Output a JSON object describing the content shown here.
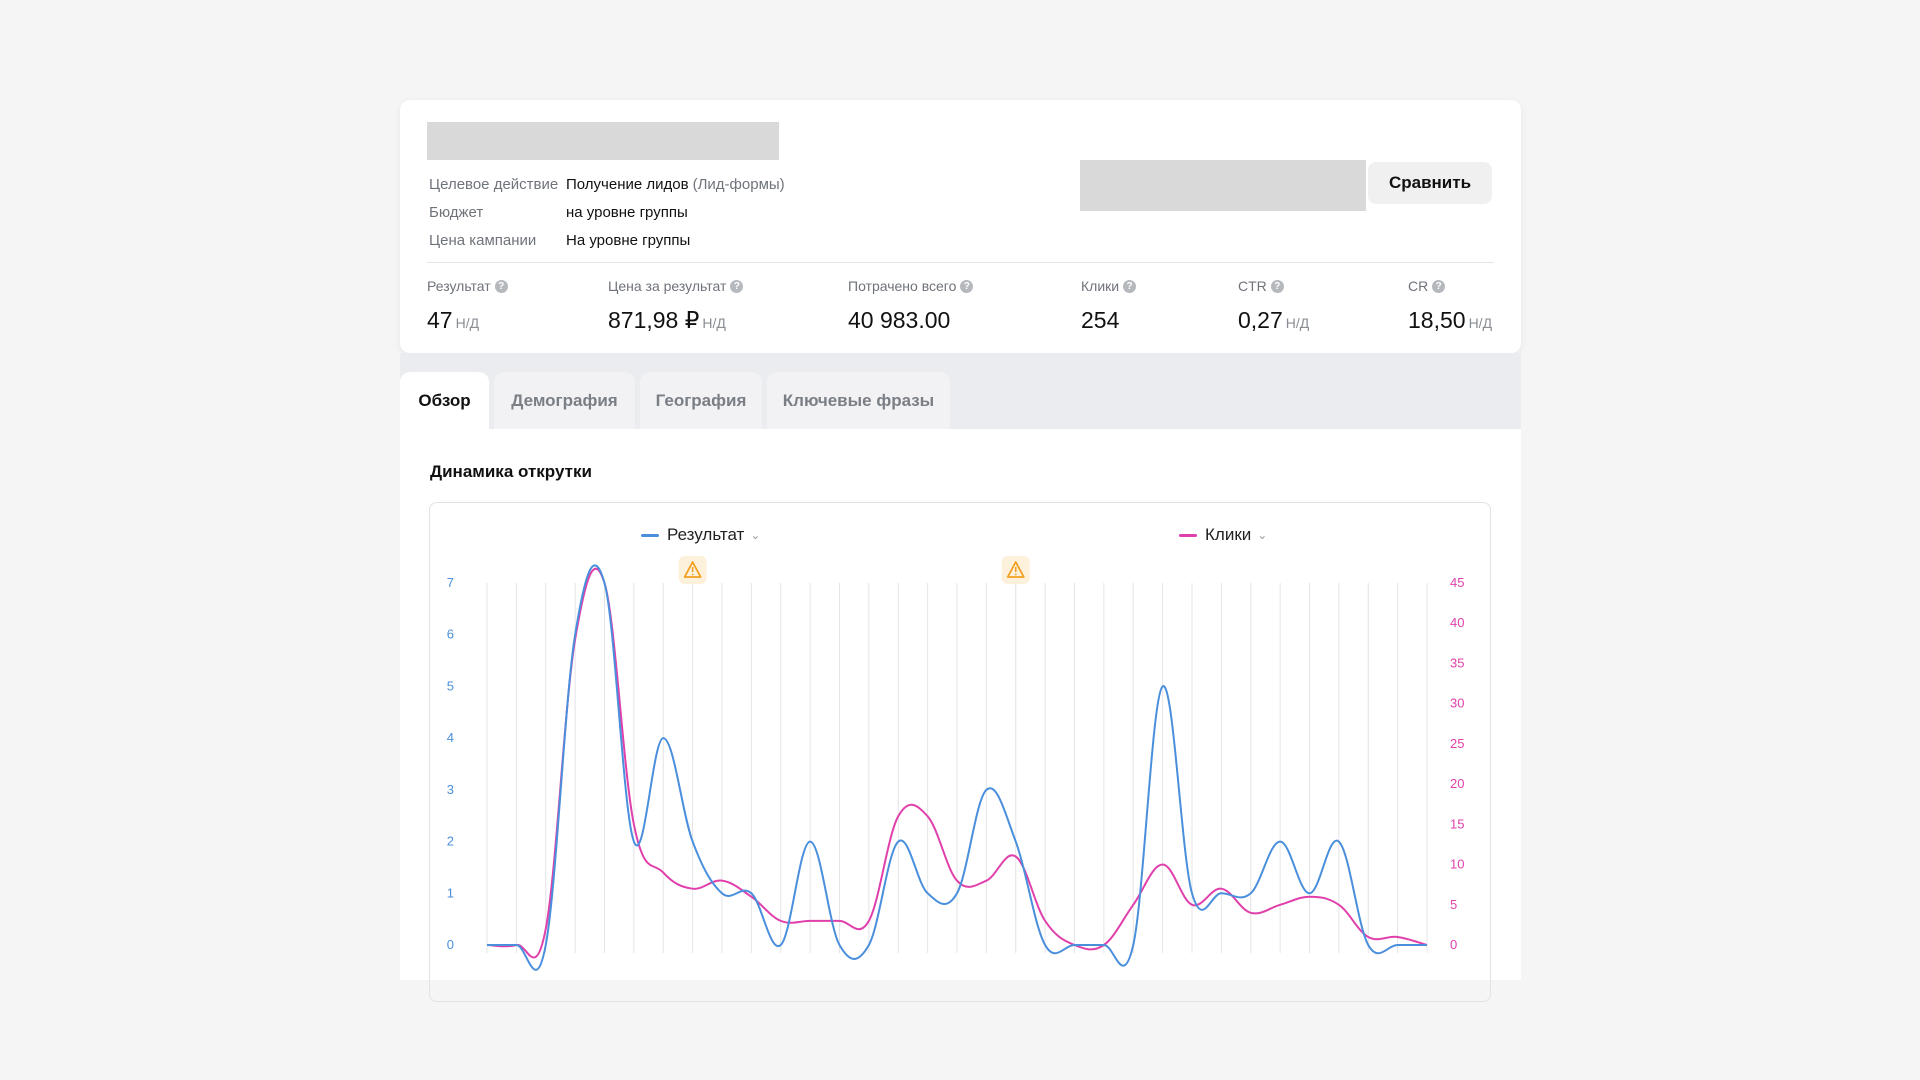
{
  "campaign": {
    "meta": [
      {
        "label": "Целевое действие",
        "value": "Получение лидов",
        "hint": "(Лид-формы)"
      },
      {
        "label": "Бюджет",
        "value": "на уровне группы",
        "hint": ""
      },
      {
        "label": "Цена кампании",
        "value": "На уровне группы",
        "hint": ""
      }
    ],
    "compare_label": "Сравнить"
  },
  "stats": [
    {
      "label": "Результат",
      "value": "47",
      "nd": "Н/Д"
    },
    {
      "label": "Цена за результат",
      "value": "871,98 ₽",
      "nd": "Н/Д"
    },
    {
      "label": "Потрачено всего",
      "value": "40 983.00",
      "nd": ""
    },
    {
      "label": "Клики",
      "value": "254",
      "nd": ""
    },
    {
      "label": "CTR",
      "value": "0,27",
      "nd": "Н/Д"
    },
    {
      "label": "CR",
      "value": "18,50",
      "nd": "Н/Д"
    }
  ],
  "tabs": [
    {
      "label": "Обзор",
      "active": true
    },
    {
      "label": "Демография",
      "active": false
    },
    {
      "label": "География",
      "active": false
    },
    {
      "label": "Ключевые фразы",
      "active": false
    }
  ],
  "section_title": "Динамика открутки",
  "icons": {
    "help": "question-circle-icon",
    "warning": "warning-triangle-icon",
    "chevron": "chevron-down-icon"
  },
  "colors": {
    "result": "#4a8fdc",
    "clicks": "#e040ab",
    "warning": "#f0a020"
  },
  "chart_data": {
    "type": "line",
    "title": "",
    "x": [
      0,
      1,
      2,
      3,
      4,
      5,
      6,
      7,
      8,
      9,
      10,
      11,
      12,
      13,
      14,
      15,
      16,
      17,
      18,
      19,
      20,
      21,
      22,
      23,
      24,
      25,
      26,
      27,
      28,
      29,
      30,
      31,
      32
    ],
    "series": [
      {
        "name": "Результат",
        "axis": "left",
        "values": [
          0,
          0,
          0,
          6,
          7,
          2,
          4,
          2,
          1,
          1,
          0,
          2,
          0,
          0,
          2,
          1,
          1,
          3,
          2,
          0,
          0,
          0,
          0,
          5,
          1,
          1,
          1,
          2,
          1,
          2,
          0,
          0,
          0
        ]
      },
      {
        "name": "Клики",
        "axis": "right",
        "values": [
          0,
          0,
          2,
          38,
          45,
          15,
          9,
          7,
          8,
          6,
          3,
          3,
          3,
          3,
          16,
          16,
          8,
          8,
          11,
          3,
          0,
          0,
          5,
          10,
          5,
          7,
          4,
          5,
          6,
          5,
          1,
          1,
          0
        ]
      }
    ],
    "y_left": {
      "ticks": [
        "0",
        "1",
        "2",
        "3",
        "4",
        "5",
        "6",
        "7"
      ],
      "range": [
        0,
        7
      ]
    },
    "y_right": {
      "ticks": [
        "0",
        "5",
        "10",
        "15",
        "20",
        "25",
        "30",
        "35",
        "40",
        "45"
      ],
      "range": [
        0,
        45
      ]
    },
    "warning_markers_x": [
      7,
      18
    ],
    "grid": "vertical"
  }
}
